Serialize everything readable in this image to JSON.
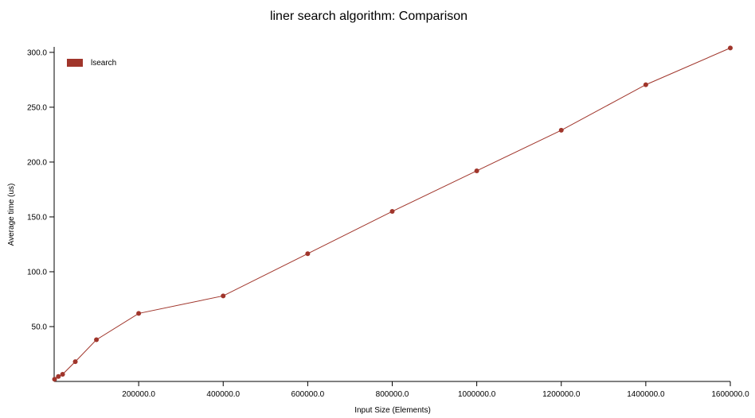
{
  "chart_data": {
    "type": "line",
    "title": "liner search algorithm: Comparison",
    "xlabel": "Input Size (Elements)",
    "ylabel": "Average time (us)",
    "xlim": [
      0,
      1600000
    ],
    "ylim": [
      0,
      305
    ],
    "x_ticks": [
      200000,
      400000,
      600000,
      800000,
      1000000,
      1200000,
      1400000,
      1600000
    ],
    "x_tick_labels": [
      "200000.0",
      "400000.0",
      "600000.0",
      "800000.0",
      "1000000.0",
      "1200000.0",
      "1400000.0",
      "1600000.0"
    ],
    "y_ticks": [
      50,
      100,
      150,
      200,
      250,
      300
    ],
    "y_tick_labels": [
      "50.0",
      "100.0",
      "150.0",
      "200.0",
      "250.0",
      "300.0"
    ],
    "grid": false,
    "legend_position": "top-left",
    "series": [
      {
        "name": "lsearch",
        "color": "#a0352b",
        "points": [
          {
            "x": 1000,
            "y": 2
          },
          {
            "x": 10000,
            "y": 4.5
          },
          {
            "x": 20000,
            "y": 6.5
          },
          {
            "x": 50000,
            "y": 18
          },
          {
            "x": 100000,
            "y": 38
          },
          {
            "x": 200000,
            "y": 62
          },
          {
            "x": 400000,
            "y": 78
          },
          {
            "x": 600000,
            "y": 116.5
          },
          {
            "x": 800000,
            "y": 155
          },
          {
            "x": 1000000,
            "y": 192
          },
          {
            "x": 1200000,
            "y": 229
          },
          {
            "x": 1400000,
            "y": 270.5
          },
          {
            "x": 1600000,
            "y": 304
          }
        ]
      }
    ]
  }
}
